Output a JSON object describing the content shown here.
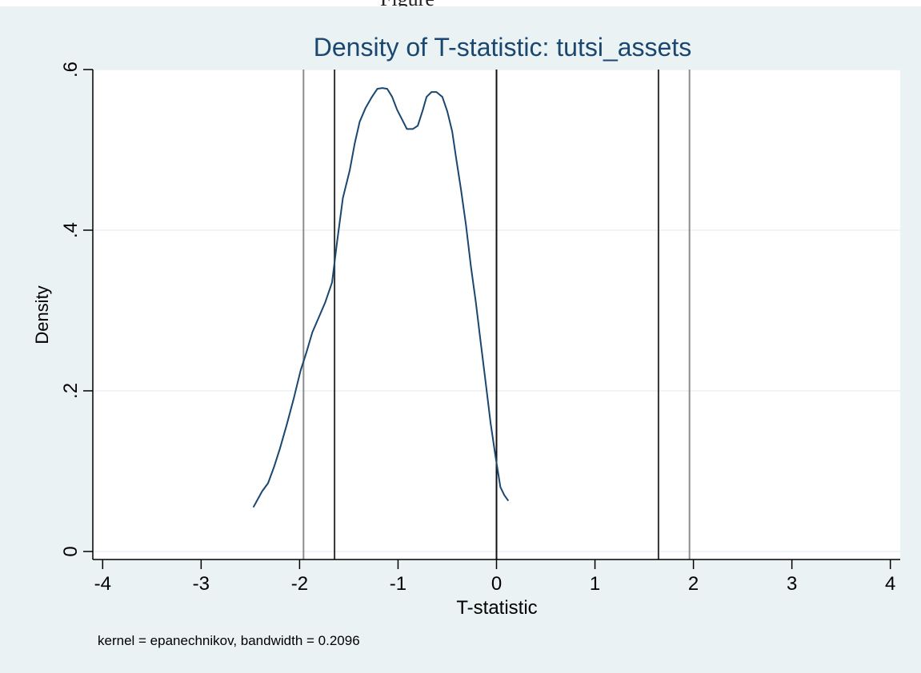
{
  "top_cropped_text": "Figure",
  "chart_data": {
    "type": "line",
    "title": "Density of T-statistic: tutsi_assets",
    "xlabel": "T-statistic",
    "ylabel": "Density",
    "note": "kernel = epanechnikov, bandwidth = 0.2096",
    "xlim": [
      -4.1,
      4.1
    ],
    "ylim": [
      -0.01,
      0.6
    ],
    "xticks": [
      -4,
      -3,
      -2,
      -1,
      0,
      1,
      2,
      3,
      4
    ],
    "xtick_labels": [
      "-4",
      "-3",
      "-2",
      "-1",
      "0",
      "1",
      "2",
      "3",
      "4"
    ],
    "yticks": [
      0,
      0.2,
      0.4,
      0.6
    ],
    "ytick_labels": [
      "0",
      ".2",
      ".4",
      ".6"
    ],
    "grid": true,
    "reference_lines": [
      {
        "x": -1.96,
        "color": "#8c8c8c"
      },
      {
        "x": -1.645,
        "color": "#333333"
      },
      {
        "x": 0,
        "color": "#111111"
      },
      {
        "x": 1.645,
        "color": "#333333"
      },
      {
        "x": 1.96,
        "color": "#8c8c8c"
      }
    ],
    "colors": {
      "background": "#eaf2f3",
      "plot_region": "#ffffff",
      "line": "#1a476f",
      "grid": "#eaf2f3"
    },
    "series": [
      {
        "x": [
          -2.47,
          -2.38,
          -2.32,
          -2.26,
          -2.2,
          -2.13,
          -2.06,
          -1.99,
          -1.93,
          -1.87,
          -1.81,
          -1.74,
          -1.67,
          -1.62,
          -1.56,
          -1.49,
          -1.44,
          -1.39,
          -1.33,
          -1.27,
          -1.21,
          -1.16,
          -1.11,
          -1.06,
          -1.01,
          -0.96,
          -0.91,
          -0.85,
          -0.8,
          -0.75,
          -0.71,
          -0.66,
          -0.61,
          -0.55,
          -0.5,
          -0.45,
          -0.41,
          -0.36,
          -0.31,
          -0.26,
          -0.21,
          -0.16,
          -0.11,
          -0.06,
          -0.01,
          0.04,
          0.08,
          0.12
        ],
        "y": [
          0.055,
          0.075,
          0.085,
          0.105,
          0.128,
          0.158,
          0.19,
          0.225,
          0.248,
          0.273,
          0.29,
          0.31,
          0.335,
          0.385,
          0.44,
          0.475,
          0.508,
          0.535,
          0.552,
          0.565,
          0.576,
          0.577,
          0.576,
          0.566,
          0.55,
          0.538,
          0.526,
          0.526,
          0.53,
          0.549,
          0.566,
          0.572,
          0.572,
          0.566,
          0.548,
          0.523,
          0.49,
          0.45,
          0.406,
          0.355,
          0.31,
          0.26,
          0.21,
          0.16,
          0.118,
          0.08,
          0.07,
          0.063
        ]
      }
    ]
  }
}
